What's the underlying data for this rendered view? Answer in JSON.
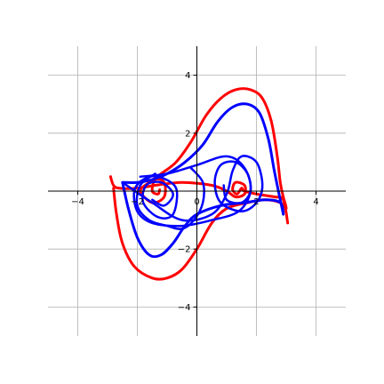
{
  "chart_data": {
    "type": "line",
    "title": "",
    "xlabel": "",
    "ylabel": "",
    "xlim": [
      -5,
      5
    ],
    "ylim": [
      -5,
      5
    ],
    "grid": true,
    "legend": "none",
    "x_ticks": [
      -4,
      -2,
      0,
      2,
      4
    ],
    "y_ticks": [
      -4,
      -2,
      0,
      2,
      4
    ],
    "x_tick_labels": [
      "−4",
      "−2",
      "0",
      "2",
      "4"
    ],
    "y_tick_labels": [
      "−4",
      "−2",
      "",
      "2",
      "4"
    ],
    "series": [
      {
        "color": "#ff0000",
        "width": 3,
        "points": [
          [
            -2.8,
            0.1
          ],
          [
            -2.7,
            -0.8
          ],
          [
            -2.5,
            -1.8
          ],
          [
            -2.1,
            -2.6
          ],
          [
            -1.5,
            -3.0
          ],
          [
            -1.0,
            -3.0
          ],
          [
            -0.5,
            -2.7
          ],
          [
            0.0,
            -2.0
          ],
          [
            0.5,
            -1.1
          ],
          [
            1.0,
            -0.6
          ],
          [
            1.7,
            -0.4
          ],
          [
            2.3,
            -0.3
          ],
          [
            2.8,
            -0.4
          ],
          [
            3.0,
            -0.6
          ],
          [
            2.9,
            -0.2
          ],
          [
            2.8,
            0.3
          ],
          [
            2.7,
            1.2
          ],
          [
            2.5,
            2.4
          ],
          [
            2.2,
            3.2
          ],
          [
            1.8,
            3.5
          ],
          [
            1.3,
            3.5
          ],
          [
            0.8,
            3.2
          ],
          [
            0.3,
            2.6
          ],
          [
            -0.2,
            1.7
          ],
          [
            -0.7,
            1.0
          ],
          [
            -1.2,
            0.6
          ],
          [
            -1.6,
            0.3
          ],
          [
            -1.9,
            0.0
          ],
          [
            -1.5,
            -0.4
          ],
          [
            -1.1,
            -0.2
          ],
          [
            -1.1,
            0.3
          ],
          [
            -1.4,
            0.4
          ],
          [
            -1.5,
            0.0
          ],
          [
            -1.3,
            -0.1
          ],
          [
            -1.25,
            0.05
          ]
        ]
      },
      {
        "color": "#ff0000",
        "width": 3,
        "points": [
          [
            -2.9,
            0.5
          ],
          [
            -2.8,
            0.2
          ],
          [
            -2.6,
            0.1
          ],
          [
            -2.0,
            0.1
          ],
          [
            -1.4,
            0.2
          ],
          [
            -0.5,
            0.3
          ],
          [
            0.5,
            0.2
          ],
          [
            1.0,
            0.0
          ],
          [
            1.3,
            -0.2
          ],
          [
            1.6,
            -0.1
          ],
          [
            1.6,
            0.2
          ],
          [
            1.3,
            0.3
          ],
          [
            1.2,
            0.05
          ],
          [
            1.35,
            -0.1
          ],
          [
            1.5,
            0.1
          ],
          [
            1.6,
            0.0
          ],
          [
            2.0,
            -0.1
          ],
          [
            2.6,
            -0.2
          ],
          [
            2.9,
            -0.3
          ],
          [
            3.05,
            -1.1
          ]
        ]
      },
      {
        "color": "#0000ff",
        "width": 3,
        "points": [
          [
            -2.5,
            0.3
          ],
          [
            -2.3,
            -0.6
          ],
          [
            -2.0,
            -1.6
          ],
          [
            -1.6,
            -2.2
          ],
          [
            -1.2,
            -2.2
          ],
          [
            -0.8,
            -1.8
          ],
          [
            -0.4,
            -1.2
          ],
          [
            0.0,
            -0.8
          ],
          [
            0.8,
            -0.5
          ],
          [
            1.6,
            -0.4
          ],
          [
            2.3,
            -0.3
          ],
          [
            2.8,
            -0.4
          ],
          [
            2.9,
            -0.8
          ],
          [
            2.8,
            -0.3
          ],
          [
            2.6,
            0.7
          ],
          [
            2.4,
            1.8
          ],
          [
            2.1,
            2.7
          ],
          [
            1.7,
            3.0
          ],
          [
            1.2,
            2.9
          ],
          [
            0.7,
            2.4
          ],
          [
            0.2,
            1.6
          ],
          [
            -0.4,
            1.0
          ],
          [
            -1.0,
            0.6
          ],
          [
            -1.5,
            0.4
          ],
          [
            -2.0,
            0.3
          ],
          [
            -2.5,
            0.3
          ]
        ]
      },
      {
        "color": "#0000ff",
        "width": 2.5,
        "points": [
          [
            -2.5,
            0.3
          ],
          [
            -1.5,
            -0.4
          ],
          [
            -0.5,
            -1.0
          ],
          [
            0.5,
            -0.8
          ],
          [
            1.0,
            -0.1
          ],
          [
            1.2,
            0.7
          ],
          [
            1.5,
            1.2
          ],
          [
            2.0,
            1.0
          ],
          [
            2.2,
            0.2
          ],
          [
            2.0,
            -0.4
          ],
          [
            1.5,
            -0.7
          ],
          [
            0.8,
            -0.4
          ],
          [
            0.6,
            0.3
          ],
          [
            0.8,
            0.9
          ],
          [
            1.3,
            1.0
          ],
          [
            1.7,
            0.6
          ],
          [
            1.8,
            0.0
          ],
          [
            1.5,
            -0.4
          ],
          [
            1.0,
            -0.3
          ],
          [
            0.9,
            0.2
          ]
        ]
      },
      {
        "color": "#0000ff",
        "width": 2.5,
        "points": [
          [
            -1.9,
            0.5
          ],
          [
            -1.0,
            0.6
          ],
          [
            0.0,
            0.9
          ],
          [
            1.0,
            1.2
          ],
          [
            1.6,
            0.8
          ],
          [
            1.8,
            0.0
          ],
          [
            1.4,
            -0.7
          ],
          [
            0.5,
            -1.0
          ],
          [
            -0.5,
            -1.2
          ],
          [
            -1.5,
            -1.1
          ],
          [
            -2.0,
            -0.7
          ],
          [
            -2.1,
            0.0
          ],
          [
            -1.8,
            0.4
          ],
          [
            -1.3,
            0.5
          ],
          [
            -0.7,
            0.1
          ],
          [
            -0.8,
            -0.8
          ],
          [
            -1.3,
            -0.9
          ],
          [
            -1.8,
            -0.4
          ],
          [
            -1.7,
            0.2
          ],
          [
            -1.2,
            0.3
          ],
          [
            -0.8,
            -0.1
          ],
          [
            -1.1,
            -0.5
          ],
          [
            -1.5,
            -0.3
          ]
        ]
      },
      {
        "color": "#0000ff",
        "width": 2.5,
        "points": [
          [
            -0.2,
            0.8
          ],
          [
            0.2,
            0.3
          ],
          [
            0.2,
            -0.4
          ],
          [
            -0.1,
            -1.0
          ],
          [
            -0.5,
            -1.3
          ],
          [
            -1.0,
            -1.2
          ],
          [
            -1.6,
            -1.0
          ],
          [
            -2.0,
            -0.5
          ],
          [
            -1.9,
            0.2
          ],
          [
            -1.4,
            0.6
          ]
        ]
      }
    ]
  }
}
